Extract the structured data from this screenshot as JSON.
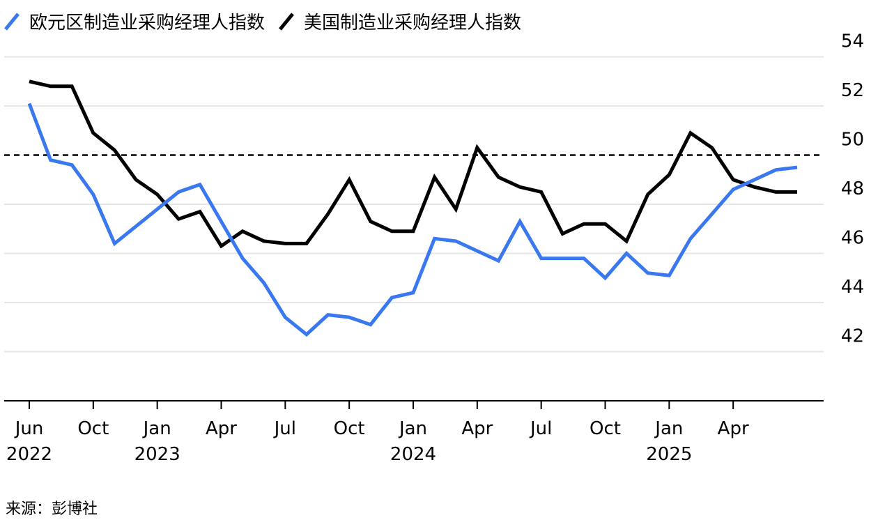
{
  "chart_data": {
    "type": "line",
    "title": "",
    "xlabel": "",
    "ylabel": "",
    "x": [
      "2022-06",
      "2022-07",
      "2022-08",
      "2022-09",
      "2022-10",
      "2022-11",
      "2022-12",
      "2023-01",
      "2023-02",
      "2023-03",
      "2023-04",
      "2023-05",
      "2023-06",
      "2023-07",
      "2023-08",
      "2023-09",
      "2023-10",
      "2023-11",
      "2023-12",
      "2024-01",
      "2024-02",
      "2024-03",
      "2024-04",
      "2024-05",
      "2024-06",
      "2024-07",
      "2024-08",
      "2024-09",
      "2024-10",
      "2024-11",
      "2024-12",
      "2025-01",
      "2025-02",
      "2025-03",
      "2025-04",
      "2025-05",
      "2025-06"
    ],
    "series": [
      {
        "name": "欧元区制造业采购经理人指数",
        "color": "#3a78f0",
        "values": [
          52.1,
          49.8,
          49.6,
          48.4,
          46.4,
          47.1,
          47.8,
          48.5,
          48.8,
          47.3,
          45.8,
          44.8,
          43.4,
          42.7,
          43.5,
          43.4,
          43.1,
          44.2,
          44.4,
          46.6,
          46.5,
          46.1,
          45.7,
          47.3,
          45.8,
          45.8,
          45.8,
          45.0,
          46.0,
          45.2,
          45.1,
          46.6,
          47.6,
          48.6,
          49.0,
          49.4,
          49.5
        ]
      },
      {
        "name": "美国制造业采购经理人指数",
        "color": "#000000",
        "values": [
          53.0,
          52.8,
          52.8,
          50.9,
          50.2,
          49.0,
          48.4,
          47.4,
          47.7,
          46.3,
          46.9,
          46.5,
          46.4,
          46.4,
          47.6,
          49.0,
          47.3,
          46.9,
          46.9,
          49.1,
          47.8,
          50.3,
          49.1,
          48.7,
          48.5,
          46.8,
          47.2,
          47.2,
          46.5,
          48.4,
          49.2,
          50.9,
          50.3,
          49.0,
          48.7,
          48.5,
          48.5
        ]
      }
    ],
    "reference_line": {
      "y": 50,
      "style": "dashed",
      "color": "#000000"
    },
    "ylim": [
      40,
      56
    ],
    "y_ticks": [
      42,
      44,
      46,
      48,
      50,
      52,
      54
    ],
    "x_ticks": [
      {
        "x": "2022-06",
        "label": "Jun",
        "year": "2022"
      },
      {
        "x": "2022-09",
        "label": "Oct",
        "year": ""
      },
      {
        "x": "2022-12",
        "label": "Jan",
        "year": "2023"
      },
      {
        "x": "2023-03",
        "label": "Apr",
        "year": ""
      },
      {
        "x": "2023-06",
        "label": "Jul",
        "year": ""
      },
      {
        "x": "2023-09",
        "label": "Oct",
        "year": ""
      },
      {
        "x": "2023-12",
        "label": "Jan",
        "year": "2024"
      },
      {
        "x": "2024-03",
        "label": "Apr",
        "year": ""
      },
      {
        "x": "2024-06",
        "label": "Jul",
        "year": ""
      },
      {
        "x": "2024-09",
        "label": "Oct",
        "year": ""
      },
      {
        "x": "2024-12",
        "label": "Jan",
        "year": "2025"
      },
      {
        "x": "2025-03",
        "label": "Apr",
        "year": ""
      }
    ],
    "grid": true,
    "legend_position": "top-left",
    "y_axis_side": "right"
  },
  "source": "来源：彭博社"
}
